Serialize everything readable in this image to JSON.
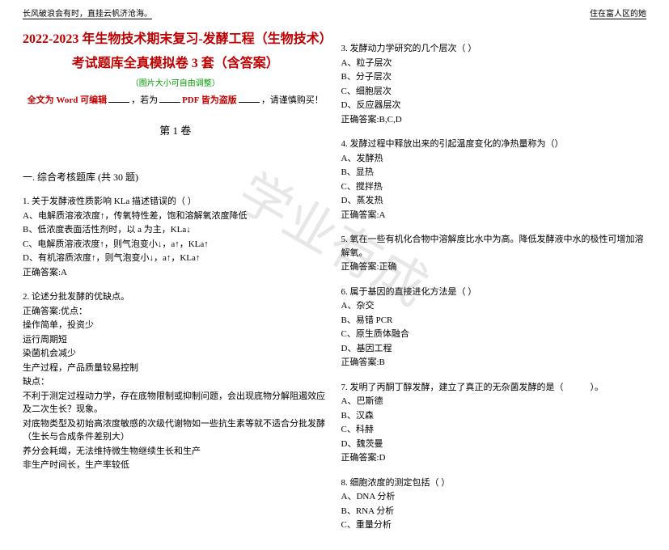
{
  "header": {
    "left": "长风破浪会有时，直挂云帆济沧海。",
    "right": "住在富人区的她"
  },
  "title_line1": "2022-2023 年生物技术期末复习-发酵工程（生物技术）",
  "title_line2": "考试题库全真模拟卷 3 套（含答案）",
  "note_green": "（图片大小可自由调整）",
  "warn_red1": "全文为 Word 可编辑",
  "warn_mid": "，若为",
  "warn_red2": "PDF 皆为盗版",
  "warn_tail": "，请谨慎购买！",
  "volume": "第 1 卷",
  "section": "一. 综合考核题库 (共 30 题)",
  "watermark": "学业有成",
  "left_questions": [
    {
      "stem": "1. 关于发酵液性质影响 KLa 描述错误的（ ）",
      "opts": [
        "A、电解质溶液浓度↑，传氧特性差，饱和溶解氧浓度降低",
        "B、低浓度表面活性剂时，以 a 为主，KLa↓",
        "C、电解质溶液浓度↑，则气泡变小↓，a↑，KLa↑",
        "D、有机溶质浓度↑，则气泡变小↓，a↑，KLa↑"
      ],
      "ans": "正确答案:A"
    },
    {
      "stem": "2. 论述分批发酵的优缺点。",
      "lines": [
        "正确答案:优点：",
        "操作简单，投资少",
        "运行周期短",
        "染菌机会减少",
        "生产过程，产品质量较易控制",
        "缺点：",
        "不利于测定过程动力学，存在底物限制或抑制问题，会出现底物分解阻遏效应及二次生长？现象。",
        "对底物类型及初始高浓度敏感的次级代谢物如一些抗生素等就不适合分批发酵（生长与合成条件差别大）",
        "养分会耗竭，无法维持微生物继续生长和生产",
        "非生产时间长，生产率较低"
      ]
    }
  ],
  "right_questions": [
    {
      "stem": "3. 发酵动力学研究的几个层次（ ）",
      "opts": [
        "A、粒子层次",
        "B、分子层次",
        "C、细胞层次",
        "D、反应器层次"
      ],
      "ans": "正确答案:B,C,D"
    },
    {
      "stem": "4. 发酵过程中释放出来的引起温度变化的净热量称为（）",
      "opts": [
        "A、发酵热",
        "B、显热",
        "C、搅拌热",
        "D、蒸发热"
      ],
      "ans": "正确答案:A"
    },
    {
      "stem": "5. 氧在一些有机化合物中溶解度比水中为高。降低发酵液中水的极性可增加溶解氧。",
      "ans": "正确答案:正确"
    },
    {
      "stem": "6. 属于基因的直接进化方法是（ ）",
      "opts": [
        "A、杂交",
        "B、易错 PCR",
        "C、原生质体融合",
        "D、基因工程"
      ],
      "ans": "正确答案:B"
    },
    {
      "stem": "7. 发明了丙酮丁醇发酵，建立了真正的无杂菌发酵的是（　　　）。",
      "opts": [
        "A、巴斯德",
        "B、汉森",
        "C、科赫",
        "D、魏茨曼"
      ],
      "ans": "正确答案:D"
    },
    {
      "stem": "8. 细胞浓度的测定包括（ ）",
      "opts": [
        "A、DNA 分析",
        "B、RNA 分析",
        "C、重量分析"
      ]
    }
  ]
}
